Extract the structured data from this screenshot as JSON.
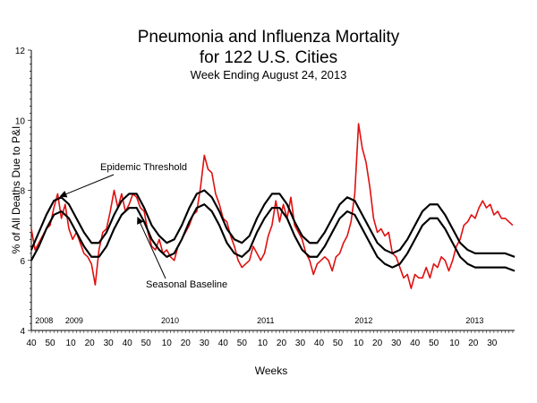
{
  "chart_data": {
    "type": "line",
    "title": [
      "Pneumonia and Influenza Mortality",
      "for 122 U.S. Cities"
    ],
    "subtitle": "Week Ending  August  24, 2013",
    "xlabel": "Weeks",
    "ylabel": "% of All Deaths Due to P&I",
    "ylim": [
      4,
      12
    ],
    "yticks": [
      4,
      6,
      8,
      10,
      12
    ],
    "grid": false,
    "xlim": [
      0,
      257
    ],
    "x_tick_labels": [
      "40",
      "50",
      "10",
      "20",
      "30",
      "40",
      "50",
      "10",
      "20",
      "30",
      "40",
      "50",
      "10",
      "20",
      "30",
      "40",
      "50",
      "10",
      "20",
      "30",
      "40",
      "50",
      "10",
      "20",
      "30"
    ],
    "x_tick_positions": [
      0,
      10,
      21,
      31,
      41,
      51,
      61,
      72,
      82,
      92,
      102,
      112,
      123,
      133,
      143,
      153,
      163,
      174,
      184,
      194,
      204,
      214,
      225,
      235,
      245
    ],
    "year_labels": [
      {
        "label": "2008",
        "x": 2
      },
      {
        "label": "2009",
        "x": 18
      },
      {
        "label": "2010",
        "x": 69
      },
      {
        "label": "2011",
        "x": 120
      },
      {
        "label": "2012",
        "x": 172
      },
      {
        "label": "2013",
        "x": 231
      }
    ],
    "annotations": [
      {
        "text": "Epidemic Threshold",
        "target_series": "Epidemic Threshold",
        "target_x": 14
      },
      {
        "text": "Seasonal Baseline",
        "target_series": "Seasonal Baseline",
        "target_x": 58
      }
    ],
    "series": [
      {
        "name": "Seasonal Baseline",
        "color": "#000000",
        "x": [
          0,
          4,
          8,
          12,
          16,
          20,
          24,
          28,
          32,
          36,
          40,
          44,
          48,
          52,
          56,
          60,
          64,
          68,
          72,
          76,
          80,
          84,
          88,
          92,
          96,
          100,
          104,
          108,
          112,
          116,
          120,
          124,
          128,
          132,
          136,
          140,
          144,
          148,
          152,
          156,
          160,
          164,
          168,
          172,
          176,
          180,
          184,
          188,
          192,
          196,
          200,
          204,
          208,
          212,
          216,
          220,
          224,
          228,
          232,
          236,
          240,
          244,
          248,
          252,
          257
        ],
        "y": [
          6.0,
          6.4,
          6.9,
          7.3,
          7.4,
          7.2,
          6.8,
          6.4,
          6.1,
          6.1,
          6.4,
          6.9,
          7.3,
          7.5,
          7.5,
          7.1,
          6.6,
          6.3,
          6.1,
          6.2,
          6.6,
          7.1,
          7.5,
          7.6,
          7.4,
          7.0,
          6.5,
          6.2,
          6.1,
          6.3,
          6.8,
          7.2,
          7.5,
          7.5,
          7.2,
          6.7,
          6.3,
          6.1,
          6.1,
          6.4,
          6.8,
          7.2,
          7.4,
          7.3,
          6.9,
          6.5,
          6.1,
          5.9,
          5.8,
          5.9,
          6.2,
          6.6,
          7.0,
          7.2,
          7.2,
          6.9,
          6.5,
          6.1,
          5.9,
          5.8,
          5.8,
          5.8,
          5.8,
          5.8,
          5.7
        ]
      },
      {
        "name": "Epidemic Threshold",
        "color": "#000000",
        "x": [
          0,
          4,
          8,
          12,
          16,
          20,
          24,
          28,
          32,
          36,
          40,
          44,
          48,
          52,
          56,
          60,
          64,
          68,
          72,
          76,
          80,
          84,
          88,
          92,
          96,
          100,
          104,
          108,
          112,
          116,
          120,
          124,
          128,
          132,
          136,
          140,
          144,
          148,
          152,
          156,
          160,
          164,
          168,
          172,
          176,
          180,
          184,
          188,
          192,
          196,
          200,
          204,
          208,
          212,
          216,
          220,
          224,
          228,
          232,
          236,
          240,
          244,
          248,
          252,
          257
        ],
        "y": [
          6.3,
          6.8,
          7.3,
          7.7,
          7.8,
          7.6,
          7.2,
          6.8,
          6.5,
          6.5,
          6.8,
          7.3,
          7.7,
          7.9,
          7.9,
          7.5,
          7.0,
          6.7,
          6.5,
          6.6,
          7.0,
          7.5,
          7.9,
          8.0,
          7.8,
          7.4,
          6.9,
          6.6,
          6.5,
          6.7,
          7.2,
          7.6,
          7.9,
          7.9,
          7.6,
          7.1,
          6.7,
          6.5,
          6.5,
          6.8,
          7.2,
          7.6,
          7.8,
          7.7,
          7.3,
          6.9,
          6.5,
          6.3,
          6.2,
          6.3,
          6.6,
          7.0,
          7.4,
          7.6,
          7.6,
          7.3,
          6.9,
          6.5,
          6.3,
          6.2,
          6.2,
          6.2,
          6.2,
          6.2,
          6.1
        ]
      },
      {
        "name": "P&I Mortality",
        "color": "#e01010",
        "x": [
          0,
          2,
          4,
          6,
          8,
          10,
          12,
          14,
          16,
          18,
          20,
          22,
          24,
          26,
          28,
          30,
          32,
          34,
          36,
          38,
          40,
          42,
          44,
          46,
          48,
          50,
          52,
          54,
          56,
          58,
          60,
          62,
          64,
          66,
          68,
          70,
          72,
          74,
          76,
          78,
          80,
          82,
          84,
          86,
          88,
          90,
          92,
          94,
          96,
          98,
          100,
          102,
          104,
          106,
          108,
          110,
          112,
          114,
          116,
          118,
          120,
          122,
          124,
          126,
          128,
          130,
          132,
          134,
          136,
          138,
          140,
          142,
          144,
          146,
          148,
          150,
          152,
          154,
          156,
          158,
          160,
          162,
          164,
          166,
          168,
          170,
          172,
          174,
          176,
          178,
          180,
          182,
          184,
          186,
          188,
          190,
          192,
          194,
          196,
          198,
          200,
          202,
          204,
          206,
          208,
          210,
          212,
          214,
          216,
          218,
          220,
          222,
          224,
          226,
          228,
          230,
          232,
          234,
          236,
          238,
          240,
          242,
          244,
          246,
          248,
          250,
          252,
          254,
          256
        ],
        "y": [
          6.9,
          6.3,
          6.5,
          6.7,
          6.9,
          7.0,
          7.5,
          7.9,
          7.2,
          7.6,
          6.9,
          6.6,
          6.8,
          6.5,
          6.2,
          6.1,
          5.9,
          5.3,
          6.3,
          6.8,
          6.9,
          7.4,
          8.0,
          7.5,
          7.9,
          7.4,
          7.6,
          7.9,
          7.8,
          7.5,
          7.4,
          6.8,
          6.4,
          6.3,
          6.6,
          6.2,
          6.3,
          6.1,
          6.0,
          6.4,
          6.6,
          6.8,
          7.0,
          7.3,
          7.4,
          8.1,
          9.0,
          8.6,
          8.5,
          7.9,
          7.6,
          7.2,
          7.1,
          6.7,
          6.4,
          6.0,
          5.8,
          5.9,
          6.0,
          6.4,
          6.2,
          6.0,
          6.2,
          6.7,
          7.0,
          7.7,
          7.1,
          7.6,
          7.2,
          7.8,
          7.0,
          6.8,
          6.6,
          6.2,
          6.0,
          5.6,
          5.9,
          6.0,
          6.1,
          6.0,
          5.7,
          6.1,
          6.2,
          6.5,
          6.7,
          7.1,
          7.9,
          9.9,
          9.2,
          8.8,
          8.1,
          7.2,
          6.8,
          6.9,
          6.7,
          6.8,
          6.2,
          6.1,
          5.8,
          5.5,
          5.6,
          5.2,
          5.6,
          5.5,
          5.5,
          5.8,
          5.5,
          5.9,
          5.8,
          6.1,
          6.0,
          5.7,
          6.0,
          6.4,
          6.6,
          7.0,
          7.1,
          7.3,
          7.2,
          7.5,
          7.7,
          7.5,
          7.6,
          7.3,
          7.4,
          7.2,
          7.2,
          7.1,
          7.0
        ]
      }
    ]
  }
}
